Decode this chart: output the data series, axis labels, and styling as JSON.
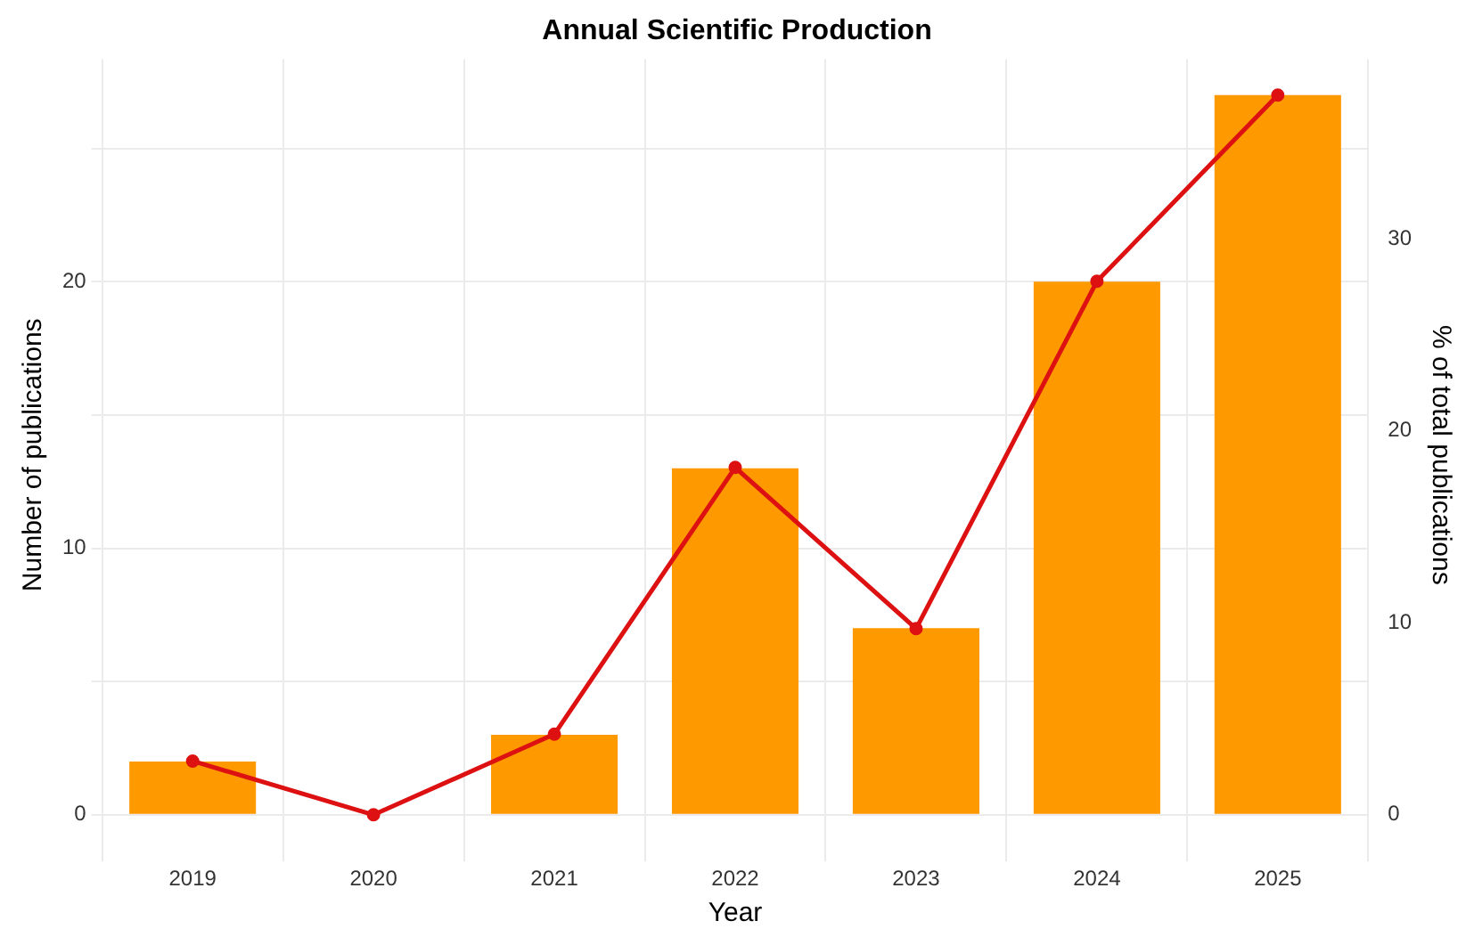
{
  "chart_data": {
    "type": "bar",
    "title": "Annual Scientific Production",
    "xlabel": "Year",
    "ylabel": "Number of publications",
    "y2label": "% of total publications",
    "categories": [
      "2019",
      "2020",
      "2021",
      "2022",
      "2023",
      "2024",
      "2025"
    ],
    "series": [
      {
        "color": "#ff9900",
        "values": [
          2,
          0,
          3,
          13,
          7,
          20,
          27
        ]
      },
      {
        "type": "line",
        "axis": "y2",
        "color": "#dd1111",
        "values": [
          2.8,
          0,
          4.2,
          18.1,
          9.7,
          27.8,
          37.5
        ]
      }
    ],
    "ylim": [
      -1.35,
      28.35
    ],
    "yticks": [
      0,
      {
        "value": 5,
        "label": null
      },
      10,
      {
        "value": 15,
        "label": null
      },
      20,
      {
        "value": 25,
        "label": null
      }
    ],
    "y2lim": [
      -1.875,
      39.375
    ],
    "y2ticks": [
      0,
      10,
      20,
      30
    ],
    "grid": true,
    "marker": "circle",
    "line_style": "solid"
  }
}
